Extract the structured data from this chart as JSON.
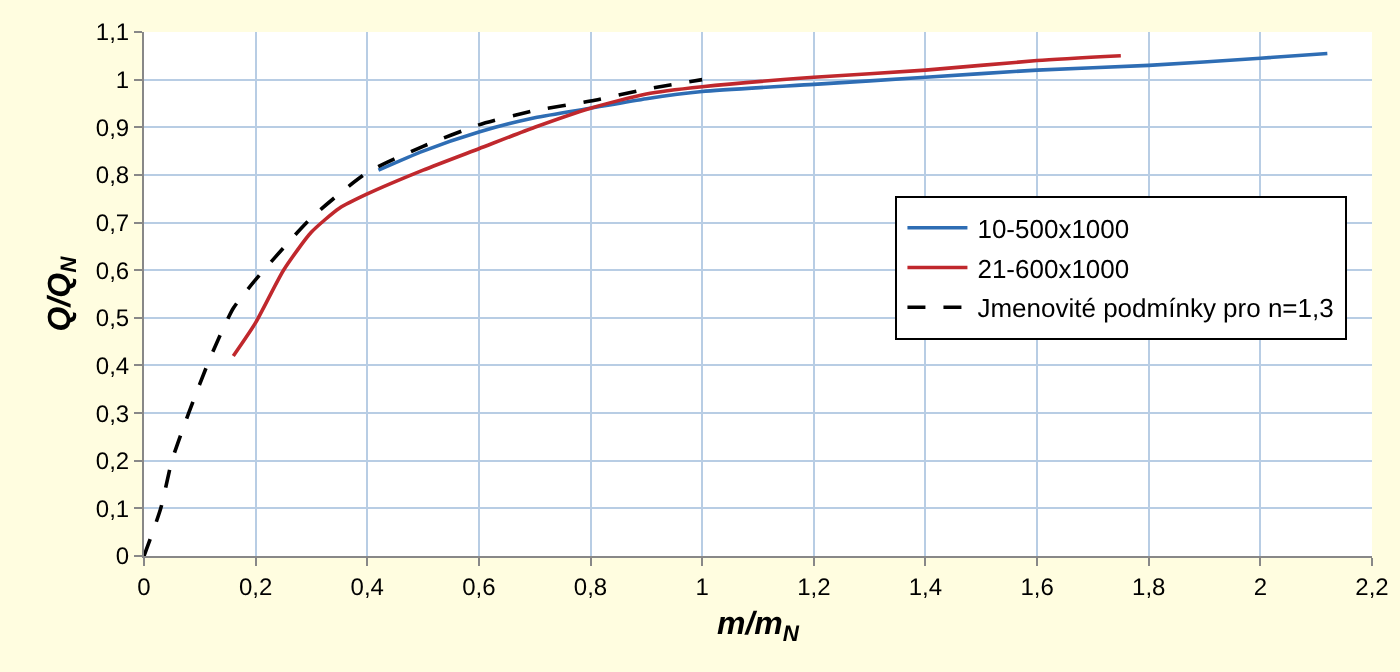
{
  "chart_data": {
    "type": "line",
    "xlabel": "m/m$_{N}$",
    "ylabel": "Q/Q$_{N}$",
    "xlim": [
      0,
      2.2
    ],
    "xticks": [
      0,
      {
        "value": 0.2,
        "label": "0,2"
      },
      {
        "value": 0.4,
        "label": "0,4"
      },
      {
        "value": 0.6,
        "label": "0,6"
      },
      {
        "value": 0.8,
        "label": "0,8"
      },
      1,
      {
        "value": 1.2,
        "label": "1,2"
      },
      {
        "value": 1.4,
        "label": "1,4"
      },
      {
        "value": 1.6,
        "label": "1,6"
      },
      {
        "value": 1.8,
        "label": "1,8"
      },
      2,
      {
        "value": 2.2,
        "label": "2,2"
      }
    ],
    "ylim": [
      0,
      1.1
    ],
    "yticks": [
      0,
      {
        "value": 0.1,
        "label": "0,1"
      },
      {
        "value": 0.2,
        "label": "0,2"
      },
      {
        "value": 0.3,
        "label": "0,3"
      },
      {
        "value": 0.4,
        "label": "0,4"
      },
      {
        "value": 0.5,
        "label": "0,5"
      },
      {
        "value": 0.6,
        "label": "0,6"
      },
      {
        "value": 0.7,
        "label": "0,7"
      },
      {
        "value": 0.8,
        "label": "0,8"
      },
      {
        "value": 0.9,
        "label": "0,9"
      },
      1,
      {
        "value": 1.1,
        "label": "1,1"
      }
    ],
    "grid": true,
    "legend": "right",
    "marker": "none",
    "series": [
      {
        "name": "10-500x1000",
        "color": "#2e6db4",
        "line_style": "solid",
        "x": [
          0.42,
          0.5,
          0.6,
          0.7,
          0.8,
          0.9,
          1.0,
          1.2,
          1.4,
          1.6,
          1.8,
          2.0,
          2.12
        ],
        "values": [
          0.81,
          0.85,
          0.89,
          0.92,
          0.94,
          0.96,
          0.975,
          0.99,
          1.005,
          1.02,
          1.03,
          1.045,
          1.055
        ]
      },
      {
        "name": "21-600x1000",
        "color": "#c0282d",
        "line_style": "solid",
        "x": [
          0.16,
          0.2,
          0.25,
          0.3,
          0.35,
          0.4,
          0.5,
          0.6,
          0.7,
          0.8,
          0.9,
          1.0,
          1.2,
          1.4,
          1.6,
          1.75
        ],
        "values": [
          0.42,
          0.49,
          0.6,
          0.68,
          0.73,
          0.76,
          0.81,
          0.855,
          0.9,
          0.94,
          0.97,
          0.985,
          1.005,
          1.02,
          1.04,
          1.05
        ]
      },
      {
        "name": "Jmenovité podmínky pro n=1,3",
        "color": "#000000",
        "line_style": "dashed",
        "x": [
          0,
          0.03,
          0.05,
          0.08,
          0.12,
          0.16,
          0.2,
          0.3,
          0.4,
          0.5,
          0.6,
          0.7,
          0.8,
          0.9,
          1.0
        ],
        "values": [
          0,
          0.1,
          0.2,
          0.3,
          0.42,
          0.52,
          0.58,
          0.71,
          0.805,
          0.86,
          0.905,
          0.935,
          0.955,
          0.98,
          1.0
        ]
      }
    ]
  }
}
